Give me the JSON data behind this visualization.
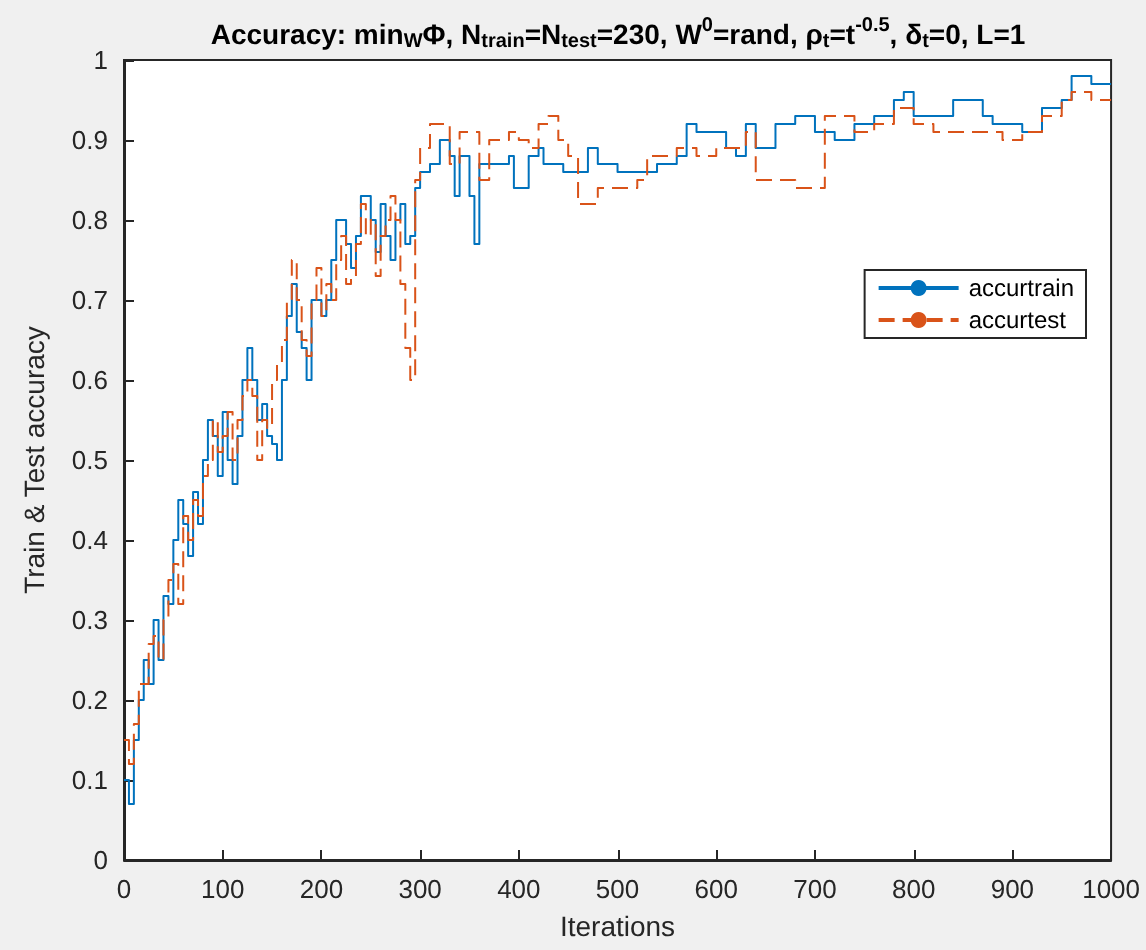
{
  "chart_data": {
    "type": "step",
    "title": "Accuracy: min$_{W}$Φ, N$_{train}$=N$_{test}$=230, W$^{0}$=rand, ρ$_{t}$=t$^{-0.5}$, δ$_{t}$=0, L=1",
    "xlabel": "Iterations",
    "ylabel": "Train & Test accuracy",
    "xlim": [
      0,
      1000
    ],
    "xticks": [
      0,
      100,
      200,
      300,
      400,
      500,
      600,
      700,
      800,
      900,
      {
        "value": 1000,
        "label": "1000"
      }
    ],
    "ylim": [
      0,
      1
    ],
    "yticks": [
      0,
      0.1,
      0.2,
      0.3,
      0.4,
      0.5,
      0.6,
      0.7,
      0.8,
      0.9,
      1
    ],
    "grid": false,
    "legend": "right",
    "marker": "none",
    "series": [
      {
        "name": "accurtrain",
        "color": "#0072bd",
        "line_style": "solid",
        "x": [
          0,
          5,
          10,
          15,
          20,
          25,
          30,
          35,
          40,
          45,
          50,
          55,
          60,
          65,
          70,
          75,
          80,
          85,
          90,
          95,
          100,
          105,
          110,
          115,
          120,
          125,
          130,
          135,
          140,
          145,
          150,
          155,
          160,
          165,
          170,
          175,
          180,
          185,
          190,
          195,
          200,
          205,
          210,
          215,
          220,
          225,
          230,
          235,
          240,
          245,
          250,
          255,
          260,
          265,
          270,
          275,
          280,
          285,
          290,
          295,
          300,
          310,
          320,
          330,
          335,
          340,
          350,
          355,
          360,
          380,
          390,
          395,
          410,
          420,
          425,
          440,
          445,
          460,
          470,
          480,
          500,
          520,
          540,
          560,
          570,
          580,
          600,
          610,
          620,
          630,
          640,
          660,
          680,
          700,
          720,
          740,
          760,
          780,
          790,
          800,
          820,
          840,
          860,
          870,
          880,
          900,
          910,
          930,
          950,
          960,
          980,
          1000
        ],
        "values": [
          0.1,
          0.07,
          0.15,
          0.2,
          0.25,
          0.22,
          0.3,
          0.25,
          0.33,
          0.32,
          0.4,
          0.45,
          0.42,
          0.38,
          0.46,
          0.42,
          0.5,
          0.55,
          0.53,
          0.48,
          0.56,
          0.5,
          0.47,
          0.53,
          0.6,
          0.64,
          0.6,
          0.55,
          0.57,
          0.53,
          0.52,
          0.5,
          0.6,
          0.68,
          0.72,
          0.66,
          0.64,
          0.6,
          0.7,
          0.7,
          0.68,
          0.7,
          0.75,
          0.8,
          0.8,
          0.77,
          0.74,
          0.78,
          0.83,
          0.83,
          0.8,
          0.76,
          0.82,
          0.78,
          0.75,
          0.8,
          0.82,
          0.77,
          0.78,
          0.84,
          0.86,
          0.87,
          0.9,
          0.88,
          0.83,
          0.88,
          0.83,
          0.77,
          0.87,
          0.87,
          0.88,
          0.84,
          0.88,
          0.89,
          0.87,
          0.87,
          0.86,
          0.86,
          0.89,
          0.87,
          0.86,
          0.86,
          0.87,
          0.88,
          0.92,
          0.91,
          0.91,
          0.89,
          0.88,
          0.92,
          0.89,
          0.92,
          0.93,
          0.91,
          0.9,
          0.92,
          0.93,
          0.95,
          0.96,
          0.93,
          0.93,
          0.95,
          0.95,
          0.93,
          0.92,
          0.92,
          0.91,
          0.94,
          0.95,
          0.98,
          0.97,
          0.97
        ]
      },
      {
        "name": "accurtest",
        "color": "#d95319",
        "line_style": "dashed",
        "x": [
          0,
          5,
          10,
          15,
          20,
          25,
          30,
          35,
          40,
          45,
          50,
          55,
          60,
          65,
          70,
          75,
          80,
          85,
          90,
          95,
          100,
          105,
          110,
          115,
          120,
          125,
          130,
          135,
          140,
          145,
          150,
          155,
          160,
          165,
          170,
          175,
          180,
          185,
          190,
          195,
          200,
          205,
          210,
          215,
          220,
          225,
          230,
          235,
          240,
          245,
          250,
          255,
          260,
          265,
          270,
          275,
          280,
          285,
          290,
          295,
          300,
          310,
          320,
          330,
          340,
          350,
          360,
          370,
          380,
          390,
          400,
          410,
          420,
          430,
          440,
          450,
          460,
          480,
          500,
          520,
          530,
          540,
          560,
          580,
          600,
          620,
          630,
          640,
          660,
          680,
          700,
          710,
          740,
          760,
          780,
          800,
          820,
          840,
          870,
          890,
          910,
          930,
          950,
          960,
          980,
          1000
        ],
        "values": [
          0.15,
          0.12,
          0.17,
          0.22,
          0.22,
          0.27,
          0.28,
          0.25,
          0.3,
          0.35,
          0.37,
          0.32,
          0.43,
          0.4,
          0.45,
          0.43,
          0.48,
          0.5,
          0.55,
          0.51,
          0.53,
          0.56,
          0.5,
          0.55,
          0.58,
          0.6,
          0.58,
          0.5,
          0.55,
          0.54,
          0.6,
          0.62,
          0.65,
          0.7,
          0.75,
          0.7,
          0.65,
          0.63,
          0.7,
          0.74,
          0.68,
          0.72,
          0.7,
          0.75,
          0.78,
          0.72,
          0.73,
          0.77,
          0.82,
          0.78,
          0.8,
          0.73,
          0.78,
          0.8,
          0.83,
          0.8,
          0.72,
          0.64,
          0.6,
          0.85,
          0.89,
          0.92,
          0.92,
          0.87,
          0.91,
          0.91,
          0.85,
          0.9,
          0.9,
          0.91,
          0.9,
          0.89,
          0.92,
          0.93,
          0.9,
          0.88,
          0.82,
          0.84,
          0.84,
          0.85,
          0.88,
          0.88,
          0.89,
          0.88,
          0.89,
          0.89,
          0.91,
          0.85,
          0.85,
          0.84,
          0.84,
          0.93,
          0.91,
          0.92,
          0.94,
          0.92,
          0.91,
          0.91,
          0.91,
          0.9,
          0.91,
          0.93,
          0.95,
          0.96,
          0.95,
          0.95
        ]
      }
    ]
  }
}
